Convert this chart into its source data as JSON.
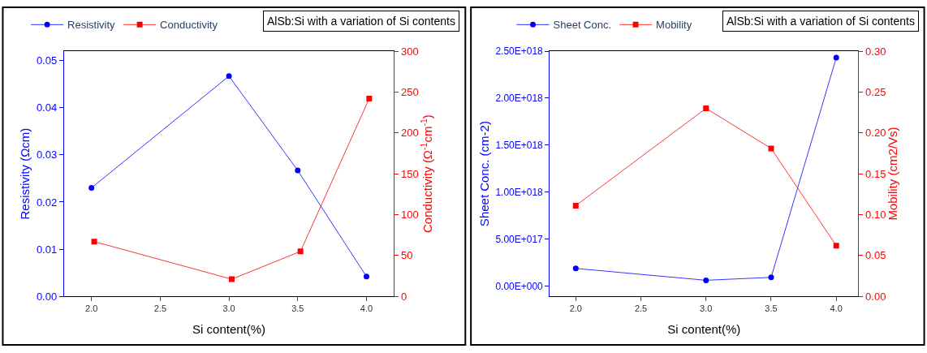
{
  "chart_data": [
    {
      "type": "line",
      "xlabel": "Si content(%)",
      "ylabel": "Resistivity (Ωcm)",
      "y2label": "Conductivity (Ω$^{-1}$cm$^{-1}$)",
      "annotations": [
        "AlSb:Si with a variation of Si contents"
      ],
      "xlim": [
        1.8,
        4.2
      ],
      "xticks": [
        {
          "value": 2,
          "label": "2.0"
        },
        {
          "value": 2.5,
          "label": "2.5"
        },
        {
          "value": 3,
          "label": "3.0"
        },
        {
          "value": 3.5,
          "label": "3.5"
        },
        {
          "value": 4,
          "label": "4.0"
        }
      ],
      "ylim": [
        0,
        0.052
      ],
      "yticks": [
        {
          "value": 0,
          "label": "0.00"
        },
        0.01,
        0.02,
        0.03,
        0.04,
        0.05
      ],
      "y2lim": [
        0,
        300
      ],
      "y2ticks": [
        0,
        50,
        100,
        150,
        200,
        250,
        300
      ],
      "legend": "top",
      "series": [
        {
          "name": "Resistivity",
          "color": "#0000ff",
          "marker": "circle",
          "x": [
            2.0,
            3.0,
            3.5,
            4.0
          ],
          "values": [
            0.023,
            0.0467,
            0.0267,
            0.0042
          ]
        },
        {
          "name": "Conductivity",
          "color": "#ff0000",
          "marker": "square",
          "axis": "y2",
          "x": [
            2.02,
            3.02,
            3.52,
            4.02
          ],
          "values": [
            67,
            21,
            55,
            242
          ]
        }
      ]
    },
    {
      "type": "line",
      "xlabel": "Si content(%)",
      "ylabel": "Sheet Conc. (cm-2)",
      "y2label": "Mobility (cm2/Vs)",
      "annotations": [
        "AlSb:Si with a variation of Si contents"
      ],
      "xlim": [
        1.8,
        4.17
      ],
      "xticks": [
        {
          "value": 2,
          "label": "2.0"
        },
        2.5,
        {
          "value": 3,
          "label": "3.0"
        },
        3.5,
        {
          "value": 4,
          "label": "4.0"
        }
      ],
      "ylim": [
        -1.07e+17,
        2.5e+18
      ],
      "yticks": [
        {
          "value": 0,
          "label": "0.00E+000"
        },
        {
          "value": 5e+17,
          "label": "5.00E+017"
        },
        {
          "value": 1e+18,
          "label": "1.00E+018"
        },
        {
          "value": 1.5e+18,
          "label": "1.50E+018"
        },
        {
          "value": 2e+18,
          "label": "2.00E+018"
        },
        {
          "value": 2.5e+18,
          "label": "2.50E+018"
        }
      ],
      "y2lim": [
        0,
        0.3
      ],
      "y2ticks": [
        {
          "value": 0,
          "label": "0.00"
        },
        0.05,
        {
          "value": 0.1,
          "label": "0.10"
        },
        0.15,
        {
          "value": 0.2,
          "label": "0.20"
        },
        0.25,
        {
          "value": 0.3,
          "label": "0.30"
        }
      ],
      "legend": "top",
      "series": [
        {
          "name": "Sheet Conc.",
          "color": "#0000ff",
          "marker": "circle",
          "x": [
            2.0,
            3.0,
            3.5,
            4.0
          ],
          "values": [
            1.9e+17,
            6.4e+16,
            9.5e+16,
            2.43e+18
          ]
        },
        {
          "name": "Mobility",
          "color": "#ff0000",
          "marker": "square",
          "axis": "y2",
          "x": [
            2.0,
            3.0,
            3.5,
            4.0
          ],
          "values": [
            0.111,
            0.23,
            0.181,
            0.062
          ]
        }
      ]
    }
  ]
}
